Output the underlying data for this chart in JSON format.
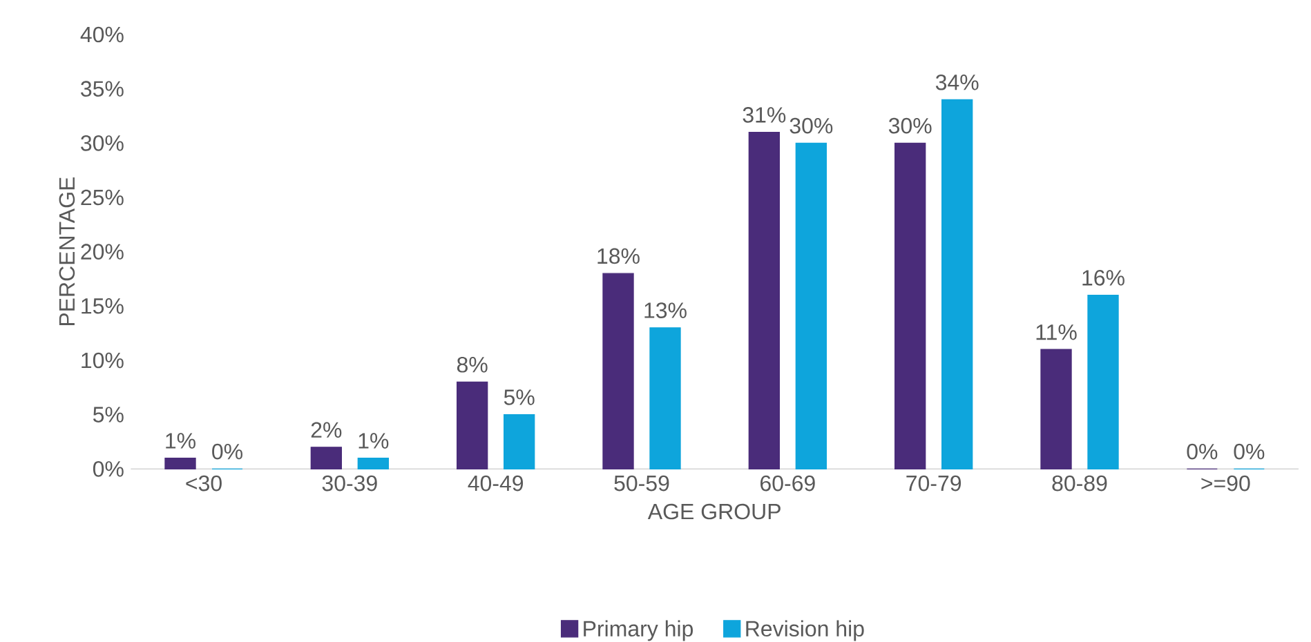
{
  "chart_data": {
    "type": "bar",
    "xlabel": "AGE GROUP",
    "ylabel": "PERCENTAGE",
    "categories": [
      "<30",
      "30-39",
      "40-49",
      "50-59",
      "60-69",
      "70-79",
      "80-89",
      ">=90"
    ],
    "series": [
      {
        "name": "Primary hip",
        "color": "#4a2c7a",
        "values": [
          1,
          2,
          8,
          18,
          31,
          30,
          11,
          0
        ],
        "value_labels": [
          "1%",
          "2%",
          "8%",
          "18%",
          "31%",
          "30%",
          "11%",
          "0%"
        ]
      },
      {
        "name": "Revision hip",
        "color": "#0ea5dc",
        "values": [
          0,
          1,
          5,
          13,
          30,
          34,
          16,
          0
        ],
        "value_labels": [
          "0%",
          "1%",
          "5%",
          "13%",
          "30%",
          "34%",
          "16%",
          "0%"
        ]
      }
    ],
    "ylim": [
      0,
      40
    ],
    "yticks": [
      {
        "value": 0,
        "label": "0%"
      },
      {
        "value": 5,
        "label": "5%"
      },
      {
        "value": 10,
        "label": "10%"
      },
      {
        "value": 15,
        "label": "15%"
      },
      {
        "value": 20,
        "label": "20%"
      },
      {
        "value": 25,
        "label": "25%"
      },
      {
        "value": 30,
        "label": "30%"
      },
      {
        "value": 35,
        "label": "35%"
      },
      {
        "value": 40,
        "label": "40%"
      }
    ],
    "grid": false,
    "legend": "bottom"
  }
}
